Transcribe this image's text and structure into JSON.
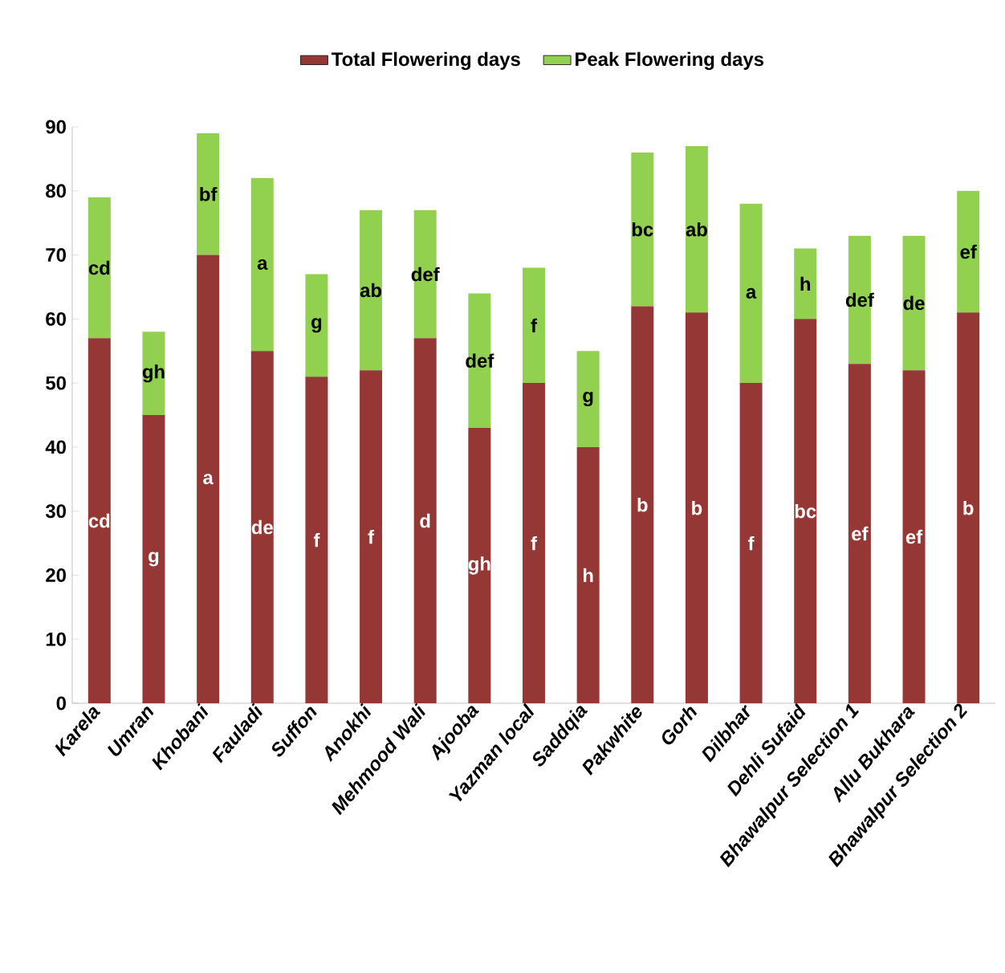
{
  "chart_data": {
    "type": "bar",
    "stacked": true,
    "categories": [
      "Karela",
      "Umran",
      "Khobani",
      "Fauladi",
      "Suffon",
      "Anokhi",
      "Mehmood Wali",
      "Ajooba",
      "Yazman local",
      "Saddqia",
      "Pakwhite",
      "Gorh",
      "Dilbhar",
      "Dehli Sufaid",
      "Bhawalpur Selection 1",
      "Allu Bukhara",
      "Bhawalpur Selection 2"
    ],
    "series": [
      {
        "name": "Total Flowering days",
        "color": "#953735",
        "values": [
          57,
          45,
          70,
          55,
          51,
          52,
          57,
          43,
          50,
          40,
          62,
          61,
          50,
          60,
          53,
          52,
          61
        ],
        "value_labels": [
          "cd",
          "g",
          "a",
          "de",
          "f",
          "f",
          "d",
          "gh",
          "f",
          "h",
          "b",
          "b",
          "f",
          "bc",
          "ef",
          "ef",
          "b"
        ]
      },
      {
        "name": "Peak Flowering days",
        "color": "#92d050",
        "values": [
          22,
          13,
          19,
          27,
          16,
          25,
          20,
          21,
          18,
          15,
          24,
          26,
          28,
          11,
          20,
          21,
          19
        ],
        "value_labels": [
          "cd",
          "gh",
          "bf",
          "a",
          "g",
          "ab",
          "def",
          "def",
          "f",
          "g",
          "bc",
          "ab",
          "a",
          "h",
          "def",
          "de",
          "ef"
        ]
      }
    ],
    "ylim": [
      0,
      90
    ],
    "yticks": [
      0,
      10,
      20,
      30,
      40,
      50,
      60,
      70,
      80,
      90
    ],
    "grid": false,
    "legend": "top"
  }
}
